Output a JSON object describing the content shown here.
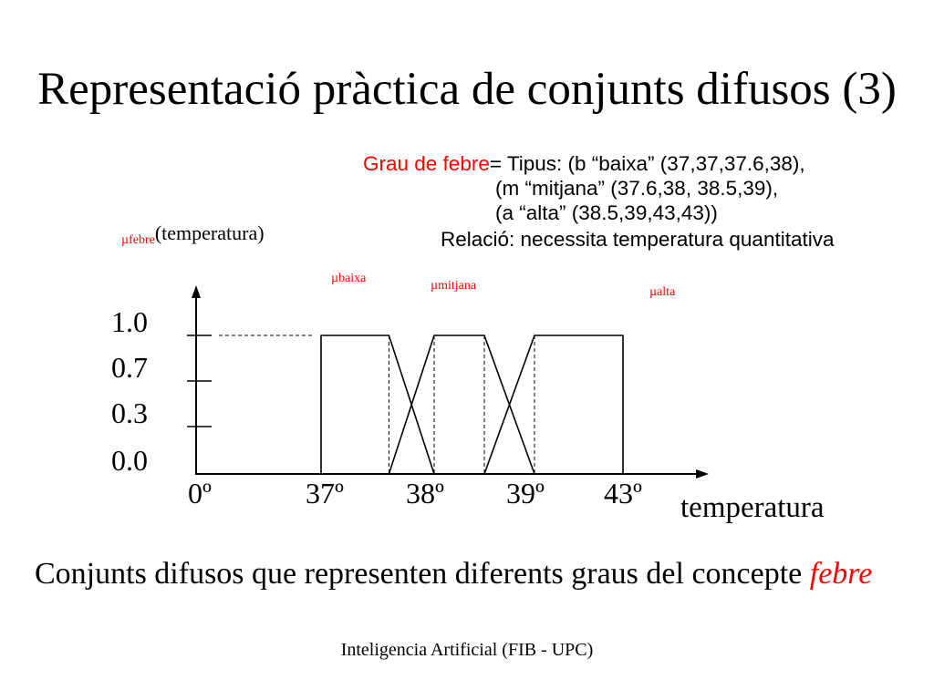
{
  "colors": {
    "accent": "#ff0000",
    "text": "#000000"
  },
  "title": "Representació pràctica de conjunts difusos (3)",
  "definition": {
    "concept": "Grau de febre",
    "line1": "= Tipus: (b “baixa” (37,37,37.6,38),",
    "line2": "(m “mitjana” (37.6,38, 38.5,39),",
    "line3": "(a “alta” (38.5,39,43,43))",
    "line4": "Relació: necessita temperatura quantitativa"
  },
  "chart_data": {
    "type": "line",
    "mu_symbol": "µ",
    "ylabel_subscript": "febre",
    "ylabel": "(temperatura)",
    "xlabel": "temperatura",
    "x_ticks": [
      {
        "value": 0,
        "label": "0º"
      },
      {
        "value": 37,
        "label": "37º"
      },
      {
        "value": 38,
        "label": "38º"
      },
      {
        "value": 39,
        "label": "39º"
      },
      {
        "value": 43,
        "label": "43º"
      }
    ],
    "y_ticks": [
      {
        "value": 1.0,
        "label": "1.0"
      },
      {
        "value": 0.7,
        "label": "0.7"
      },
      {
        "value": 0.3,
        "label": "0.3"
      },
      {
        "value": 0.0,
        "label": "0.0"
      }
    ],
    "ylim": [
      0,
      1
    ],
    "grid": false,
    "series": [
      {
        "name": "baixa",
        "x": [
          37,
          37,
          37.6,
          38
        ],
        "y": [
          0,
          1,
          1,
          0
        ]
      },
      {
        "name": "mitjana",
        "x": [
          37.6,
          38,
          38.5,
          39
        ],
        "y": [
          0,
          1,
          1,
          0
        ]
      },
      {
        "name": "alta",
        "x": [
          38.5,
          39,
          43,
          43
        ],
        "y": [
          0,
          1,
          1,
          0
        ]
      }
    ]
  },
  "caption": {
    "text": "Conjunts difusos que representen diferents graus del concepte",
    "emphasis": "febre"
  },
  "footer": "Inteligencia Artificial (FIB - UPC)"
}
